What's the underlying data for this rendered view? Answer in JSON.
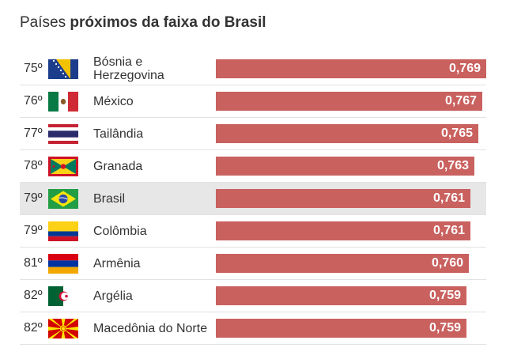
{
  "title": {
    "prefix": "Países ",
    "bold": "próximos da faixa do Brasil"
  },
  "chart_data": {
    "type": "bar",
    "orientation": "horizontal",
    "title": "Países próximos da faixa do Brasil",
    "xlim": [
      0,
      0.769
    ],
    "categories": [
      "Bósnia e Herzegovina",
      "México",
      "Tailândia",
      "Granada",
      "Brasil",
      "Colômbia",
      "Armênia",
      "Argélia",
      "Macedônia do Norte"
    ],
    "values": [
      0.769,
      0.767,
      0.765,
      0.763,
      0.761,
      0.761,
      0.76,
      0.759,
      0.759
    ],
    "rows": [
      {
        "rank": "75º",
        "country": "Bósnia e Herzegovina",
        "value": 0.769,
        "label": "0,769",
        "flag": "bosnia-flag-icon",
        "highlight": false
      },
      {
        "rank": "76º",
        "country": "México",
        "value": 0.767,
        "label": "0,767",
        "flag": "mexico-flag-icon",
        "highlight": false
      },
      {
        "rank": "77º",
        "country": "Tailândia",
        "value": 0.765,
        "label": "0,765",
        "flag": "thailand-flag-icon",
        "highlight": false
      },
      {
        "rank": "78º",
        "country": "Granada",
        "value": 0.763,
        "label": "0,763",
        "flag": "grenada-flag-icon",
        "highlight": false
      },
      {
        "rank": "79º",
        "country": "Brasil",
        "value": 0.761,
        "label": "0,761",
        "flag": "brazil-flag-icon",
        "highlight": true
      },
      {
        "rank": "79º",
        "country": "Colômbia",
        "value": 0.761,
        "label": "0,761",
        "flag": "colombia-flag-icon",
        "highlight": false
      },
      {
        "rank": "81º",
        "country": "Armênia",
        "value": 0.76,
        "label": "0,760",
        "flag": "armenia-flag-icon",
        "highlight": false
      },
      {
        "rank": "82º",
        "country": "Argélia",
        "value": 0.759,
        "label": "0,759",
        "flag": "algeria-flag-icon",
        "highlight": false
      },
      {
        "rank": "82º",
        "country": "Macedônia do Norte",
        "value": 0.759,
        "label": "0,759",
        "flag": "north-macedonia-flag-icon",
        "highlight": false
      }
    ]
  },
  "colors": {
    "bar": "#c9615f",
    "highlight_row": "#e7e7e7",
    "text": "#333333"
  }
}
